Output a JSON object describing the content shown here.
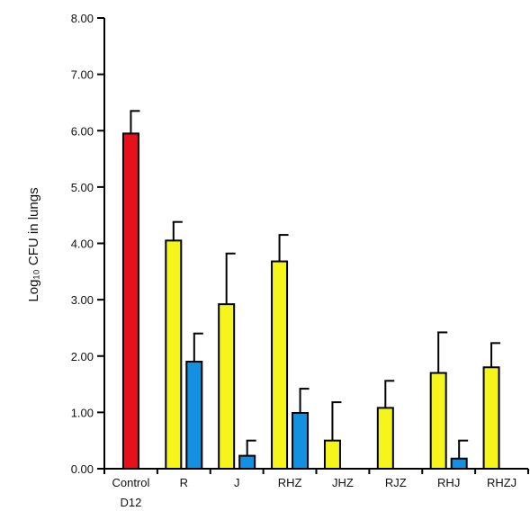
{
  "chart_data": {
    "type": "bar",
    "title": "",
    "xlabel": "",
    "ylabel": "Log₁₀ CFU in lungs",
    "ylim": [
      0,
      8
    ],
    "yticks": [
      "0.00",
      "1.00",
      "2.00",
      "3.00",
      "4.00",
      "5.00",
      "6.00",
      "7.00",
      "8.00"
    ],
    "grid": false,
    "categories": [
      {
        "lines": [
          "Control",
          "D12"
        ]
      },
      {
        "lines": [
          "R"
        ]
      },
      {
        "lines": [
          "J"
        ]
      },
      {
        "lines": [
          "RHZ"
        ]
      },
      {
        "lines": [
          "JHZ"
        ]
      },
      {
        "lines": [
          "RJZ"
        ]
      },
      {
        "lines": [
          "RHJ"
        ]
      },
      {
        "lines": [
          "RHZJ"
        ]
      }
    ],
    "bars": [
      {
        "category": 0,
        "slot": "center",
        "value": 5.95,
        "error": 0.4,
        "color": "#e8101c"
      },
      {
        "category": 1,
        "slot": "left",
        "value": 4.05,
        "error": 0.33,
        "color": "#f5f51c"
      },
      {
        "category": 1,
        "slot": "right",
        "value": 1.9,
        "error": 0.5,
        "color": "#1490e0"
      },
      {
        "category": 2,
        "slot": "left",
        "value": 2.92,
        "error": 0.9,
        "color": "#f5f51c"
      },
      {
        "category": 2,
        "slot": "right",
        "value": 0.23,
        "error": 0.27,
        "color": "#1490e0"
      },
      {
        "category": 3,
        "slot": "left",
        "value": 3.68,
        "error": 0.47,
        "color": "#f5f51c"
      },
      {
        "category": 3,
        "slot": "right",
        "value": 0.99,
        "error": 0.43,
        "color": "#1490e0"
      },
      {
        "category": 4,
        "slot": "left",
        "value": 0.5,
        "error": 0.68,
        "color": "#f5f51c"
      },
      {
        "category": 5,
        "slot": "left",
        "value": 1.08,
        "error": 0.48,
        "color": "#f5f51c"
      },
      {
        "category": 6,
        "slot": "left",
        "value": 1.7,
        "error": 0.72,
        "color": "#f5f51c"
      },
      {
        "category": 6,
        "slot": "right",
        "value": 0.18,
        "error": 0.32,
        "color": "#1490e0"
      },
      {
        "category": 7,
        "slot": "left",
        "value": 1.8,
        "error": 0.43,
        "color": "#f5f51c"
      }
    ]
  }
}
